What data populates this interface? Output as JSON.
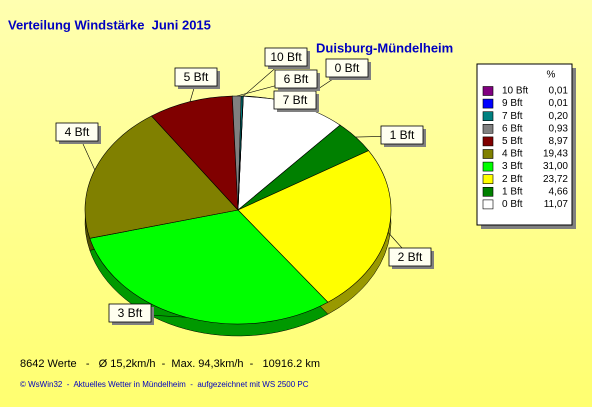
{
  "chart_data": {
    "type": "pie",
    "title": "Verteilung Windstärke  Juni 2015",
    "subtitle": "Duisburg-Mündelheim",
    "legend_title": "%",
    "categories": [
      "10 Bft",
      "9 Bft",
      "7 Bft",
      "6 Bft",
      "5 Bft",
      "4 Bft",
      "3 Bft",
      "2 Bft",
      "1 Bft",
      "0 Bft"
    ],
    "values": [
      0.01,
      0.01,
      0.2,
      0.93,
      8.97,
      19.43,
      31.0,
      23.72,
      4.66,
      11.07
    ],
    "value_labels": [
      "0,01",
      "0,01",
      "0,20",
      "0,93",
      "8,97",
      "19,43",
      "31,00",
      "23,72",
      "4,66",
      "11,07"
    ],
    "colors": [
      "#800080",
      "#0000ff",
      "#008080",
      "#808080",
      "#800000",
      "#808000",
      "#00ff00",
      "#ffff00",
      "#008000",
      "#ffffff"
    ],
    "legend_position": "right",
    "footer": [
      "8642 Werte   -   Ø 15,2km/h  -  Max. 94,3km/h  -   10916.2 km",
      "© WsWin32  -  Aktuelles Wetter in Mündelheim  -  aufgezeichnet mit WS 2500 PC"
    ]
  }
}
